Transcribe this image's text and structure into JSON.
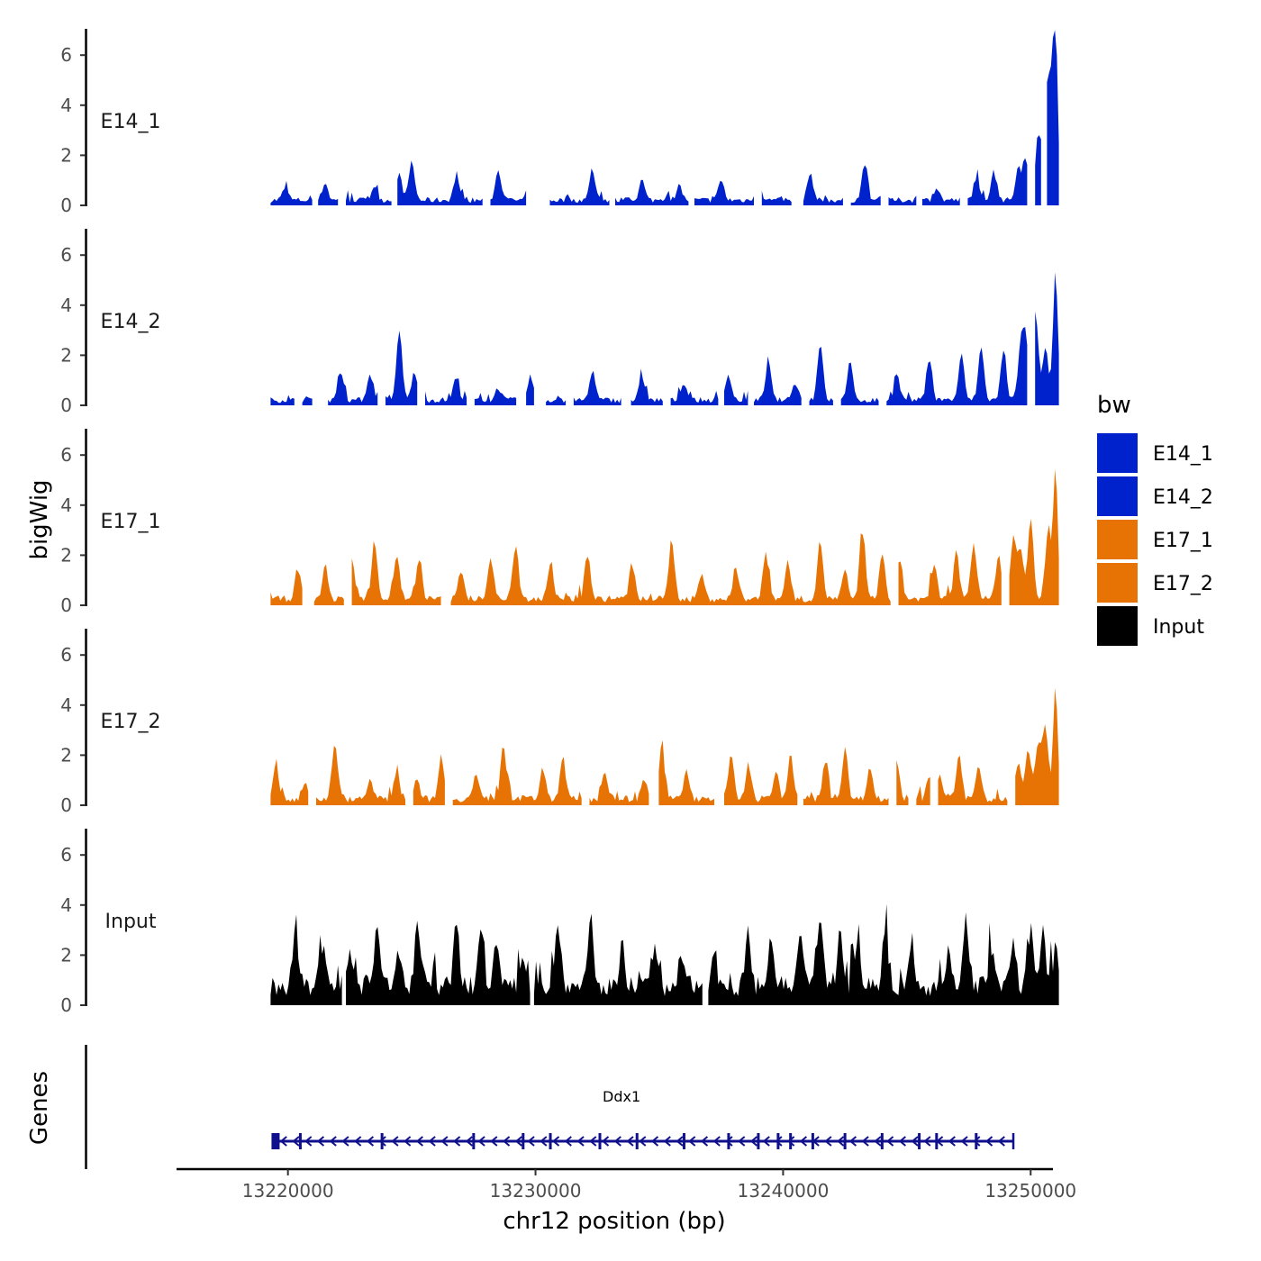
{
  "chart_data": {
    "type": "area",
    "ylabel": "bigWig",
    "xlabel": "chr12 position (bp)",
    "genes_label": "Genes",
    "ylim": [
      0,
      7
    ],
    "yticks": [
      "0",
      "2",
      "4",
      "6"
    ],
    "xlim": [
      13215500,
      13250900
    ],
    "xticks": [
      "13220000",
      "13230000",
      "13240000",
      "13250000"
    ],
    "data_xrange": [
      13219300,
      13251200
    ],
    "legend": {
      "title": "bw",
      "items": [
        {
          "label": "E14_1",
          "color": "#0022cc"
        },
        {
          "label": "E14_2",
          "color": "#0022cc"
        },
        {
          "label": "E17_1",
          "color": "#e87305"
        },
        {
          "label": "E17_2",
          "color": "#e87305"
        },
        {
          "label": "Input",
          "color": "#000000"
        }
      ]
    },
    "tracks": [
      {
        "name": "E14_1",
        "color": "#0022cc",
        "base": 0.25,
        "peak_x": 13251000,
        "peak_y": 6.7,
        "peaks": [
          [
            13219900,
            0.5
          ],
          [
            13221500,
            0.7
          ],
          [
            13223500,
            0.6
          ],
          [
            13224500,
            1.0
          ],
          [
            13225000,
            1.55
          ],
          [
            13226800,
            0.9
          ],
          [
            13228500,
            1.2
          ],
          [
            13229800,
            1.0
          ],
          [
            13232300,
            1.2
          ],
          [
            13234300,
            0.8
          ],
          [
            13235800,
            0.6
          ],
          [
            13237500,
            0.8
          ],
          [
            13239000,
            0.9
          ],
          [
            13241100,
            1.1
          ],
          [
            13243300,
            1.5
          ],
          [
            13246200,
            0.5
          ],
          [
            13247800,
            0.9
          ],
          [
            13248500,
            1.1
          ],
          [
            13249500,
            1.3
          ],
          [
            13249800,
            1.6
          ],
          [
            13250300,
            2.6
          ],
          [
            13250600,
            3.2
          ],
          [
            13250800,
            4.0
          ]
        ],
        "gaps": [
          [
            13221000,
            13221200
          ],
          [
            13222100,
            13222300
          ],
          [
            13224200,
            13224400
          ],
          [
            13227900,
            13228100
          ],
          [
            13229700,
            13230500
          ],
          [
            13233000,
            13233200
          ],
          [
            13236200,
            13236400
          ],
          [
            13238900,
            13239100
          ],
          [
            13240400,
            13240800
          ],
          [
            13242500,
            13242700
          ],
          [
            13244000,
            13244200
          ],
          [
            13245400,
            13245600
          ],
          [
            13247200,
            13247400
          ],
          [
            13249900,
            13250100
          ],
          [
            13250500,
            13250600
          ]
        ]
      },
      {
        "name": "E14_2",
        "color": "#0022cc",
        "base": 0.25,
        "peak_x": 13251000,
        "peak_y": 5.0,
        "peaks": [
          [
            13222100,
            1.1
          ],
          [
            13223300,
            1.0
          ],
          [
            13224500,
            2.7
          ],
          [
            13225100,
            1.1
          ],
          [
            13226800,
            0.9
          ],
          [
            13228500,
            0.5
          ],
          [
            13229800,
            0.9
          ],
          [
            13232300,
            1.2
          ],
          [
            13234300,
            0.9
          ],
          [
            13236000,
            0.7
          ],
          [
            13237800,
            1.0
          ],
          [
            13239400,
            1.5
          ],
          [
            13240500,
            0.7
          ],
          [
            13241500,
            2.2
          ],
          [
            13242700,
            1.5
          ],
          [
            13244600,
            1.0
          ],
          [
            13245900,
            1.7
          ],
          [
            13247200,
            1.8
          ],
          [
            13248000,
            2.1
          ],
          [
            13248900,
            1.9
          ],
          [
            13249600,
            2.0
          ],
          [
            13249800,
            2.3
          ],
          [
            13250200,
            3.5
          ],
          [
            13250600,
            2.1
          ]
        ],
        "gaps": [
          [
            13220300,
            13220500
          ],
          [
            13221000,
            13221600
          ],
          [
            13223700,
            13223900
          ],
          [
            13225300,
            13225500
          ],
          [
            13227300,
            13227500
          ],
          [
            13229300,
            13229600
          ],
          [
            13230000,
            13230400
          ],
          [
            13231300,
            13231500
          ],
          [
            13233500,
            13233800
          ],
          [
            13235200,
            13235400
          ],
          [
            13237400,
            13237600
          ],
          [
            13238600,
            13238800
          ],
          [
            13240800,
            13241000
          ],
          [
            13242100,
            13242300
          ],
          [
            13243900,
            13244100
          ],
          [
            13249900,
            13250100
          ]
        ]
      },
      {
        "name": "E17_1",
        "color": "#e87305",
        "base": 0.3,
        "peak_x": 13251000,
        "peak_y": 5.3,
        "peaks": [
          [
            13220400,
            1.2
          ],
          [
            13221500,
            1.2
          ],
          [
            13222600,
            1.5
          ],
          [
            13223500,
            2.3
          ],
          [
            13224400,
            1.8
          ],
          [
            13225300,
            1.6
          ],
          [
            13227000,
            1.2
          ],
          [
            13228200,
            1.6
          ],
          [
            13229200,
            2.2
          ],
          [
            13230600,
            1.5
          ],
          [
            13232100,
            1.8
          ],
          [
            13233900,
            1.4
          ],
          [
            13235500,
            2.4
          ],
          [
            13236700,
            1.0
          ],
          [
            13238100,
            1.2
          ],
          [
            13239300,
            1.8
          ],
          [
            13240200,
            1.5
          ],
          [
            13241500,
            2.3
          ],
          [
            13242500,
            1.1
          ],
          [
            13243200,
            2.7
          ],
          [
            13244000,
            1.8
          ],
          [
            13244700,
            1.6
          ],
          [
            13246100,
            1.4
          ],
          [
            13247000,
            1.9
          ],
          [
            13247700,
            2.2
          ],
          [
            13248700,
            1.8
          ],
          [
            13249300,
            2.5
          ],
          [
            13249600,
            1.9
          ],
          [
            13250000,
            3.1
          ],
          [
            13250700,
            2.7
          ]
        ],
        "gaps": [
          [
            13220600,
            13221000
          ],
          [
            13222300,
            13222500
          ],
          [
            13226200,
            13226500
          ],
          [
            13244400,
            13244600
          ],
          [
            13248900,
            13249100
          ]
        ]
      },
      {
        "name": "E17_2",
        "color": "#e87305",
        "base": 0.3,
        "peak_x": 13251000,
        "peak_y": 4.4,
        "peaks": [
          [
            13219500,
            1.4
          ],
          [
            13220700,
            0.6
          ],
          [
            13221900,
            2.2
          ],
          [
            13223300,
            0.8
          ],
          [
            13224400,
            1.0
          ],
          [
            13225200,
            0.9
          ],
          [
            13226200,
            1.7
          ],
          [
            13227600,
            1.0
          ],
          [
            13228700,
            2.2
          ],
          [
            13230300,
            1.2
          ],
          [
            13231100,
            1.7
          ],
          [
            13232800,
            1.1
          ],
          [
            13234400,
            0.8
          ],
          [
            13235100,
            2.1
          ],
          [
            13236100,
            1.1
          ],
          [
            13237900,
            1.7
          ],
          [
            13238600,
            1.4
          ],
          [
            13239700,
            1.1
          ],
          [
            13240300,
            1.7
          ],
          [
            13241700,
            1.5
          ],
          [
            13242500,
            2.0
          ],
          [
            13243500,
            1.3
          ],
          [
            13244600,
            1.5
          ],
          [
            13245900,
            0.8
          ],
          [
            13246300,
            0.9
          ],
          [
            13247100,
            1.7
          ],
          [
            13247900,
            1.4
          ],
          [
            13249500,
            1.5
          ],
          [
            13249900,
            1.9
          ],
          [
            13250300,
            2.3
          ],
          [
            13250600,
            2.9
          ]
        ],
        "gaps": [
          [
            13220900,
            13221100
          ],
          [
            13224800,
            13225000
          ],
          [
            13226400,
            13226600
          ],
          [
            13231900,
            13232100
          ],
          [
            13234600,
            13234900
          ],
          [
            13237300,
            13237600
          ],
          [
            13240600,
            13240800
          ],
          [
            13244300,
            13244500
          ],
          [
            13245100,
            13245300
          ],
          [
            13246000,
            13246200
          ],
          [
            13249100,
            13249300
          ]
        ]
      },
      {
        "name": "Input",
        "color": "#000000",
        "base": 0.9,
        "peak_x": 13251000,
        "peak_y": 1.7,
        "peaks": [
          [
            13220300,
            1.9
          ],
          [
            13221400,
            1.7
          ],
          [
            13222500,
            1.5
          ],
          [
            13223600,
            2.2
          ],
          [
            13224500,
            1.5
          ],
          [
            13225300,
            1.9
          ],
          [
            13226800,
            2.7
          ],
          [
            13227800,
            2.0
          ],
          [
            13228400,
            1.8
          ],
          [
            13229500,
            1.4
          ],
          [
            13230900,
            2.3
          ],
          [
            13232200,
            2.6
          ],
          [
            13233500,
            1.7
          ],
          [
            13234800,
            1.5
          ],
          [
            13235900,
            1.2
          ],
          [
            13237200,
            1.4
          ],
          [
            13238600,
            2.1
          ],
          [
            13239500,
            1.6
          ],
          [
            13240700,
            2.1
          ],
          [
            13241500,
            2.3
          ],
          [
            13242300,
            2.2
          ],
          [
            13243000,
            2.1
          ],
          [
            13244100,
            2.0
          ],
          [
            13245200,
            1.9
          ],
          [
            13246700,
            1.5
          ],
          [
            13247400,
            2.7
          ],
          [
            13248400,
            1.6
          ],
          [
            13249300,
            1.8
          ],
          [
            13250000,
            2.2
          ],
          [
            13250500,
            1.9
          ]
        ],
        "gaps": [
          [
            13222200,
            13222300
          ],
          [
            13229800,
            13229900
          ],
          [
            13236800,
            13236900
          ]
        ]
      }
    ],
    "gene": {
      "name": "Ddx1",
      "color": "#10108c",
      "start": 13219400,
      "end": 13249300,
      "strand": "-",
      "exons": [
        13219500,
        13220500,
        13223800,
        13227500,
        13229500,
        13230600,
        13232600,
        13234100,
        13236000,
        13237800,
        13239000,
        13239800,
        13240300,
        13241200,
        13242500,
        13244000,
        13245500,
        13246200,
        13247800
      ]
    }
  }
}
